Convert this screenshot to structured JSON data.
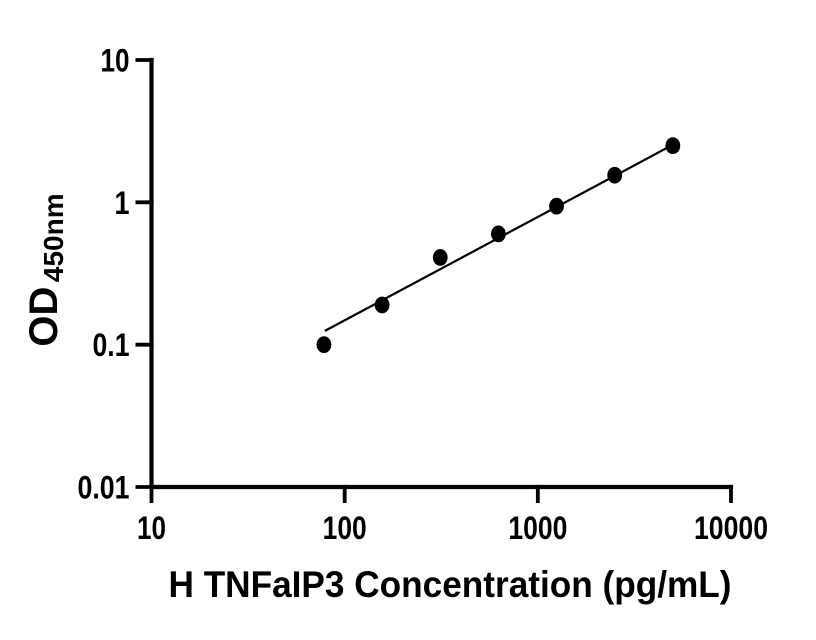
{
  "figure": {
    "background": "#ffffff",
    "ink_color": "#000000"
  },
  "chart_data": {
    "type": "scatter",
    "title": "",
    "xlabel": "H TNFaIP3 Concentration (pg/mL)",
    "ylabel": "OD",
    "ylabel_subscript": "450nm",
    "x_scale": "log",
    "y_scale": "log",
    "xlim": [
      10,
      10000
    ],
    "ylim": [
      0.01,
      10
    ],
    "x_ticks": [
      10,
      100,
      1000,
      10000
    ],
    "x_tick_labels": [
      "10",
      "100",
      "1000",
      "10000"
    ],
    "y_ticks": [
      0.01,
      0.1,
      1,
      10
    ],
    "y_tick_labels": [
      "0.01",
      "0.1",
      "1",
      "10"
    ],
    "grid": false,
    "legend": null,
    "series": [
      {
        "name": "standard-curve-points",
        "marker": "filled-circle",
        "color": "#000000",
        "x": [
          78.125,
          156.25,
          312.5,
          625,
          1250,
          2500,
          5000
        ],
        "y": [
          0.1,
          0.19,
          0.41,
          0.6,
          0.94,
          1.55,
          2.5
        ]
      }
    ],
    "fit_line": {
      "name": "trend-line",
      "color": "#000000",
      "x": [
        79,
        4950
      ],
      "y": [
        0.125,
        2.52
      ]
    }
  }
}
